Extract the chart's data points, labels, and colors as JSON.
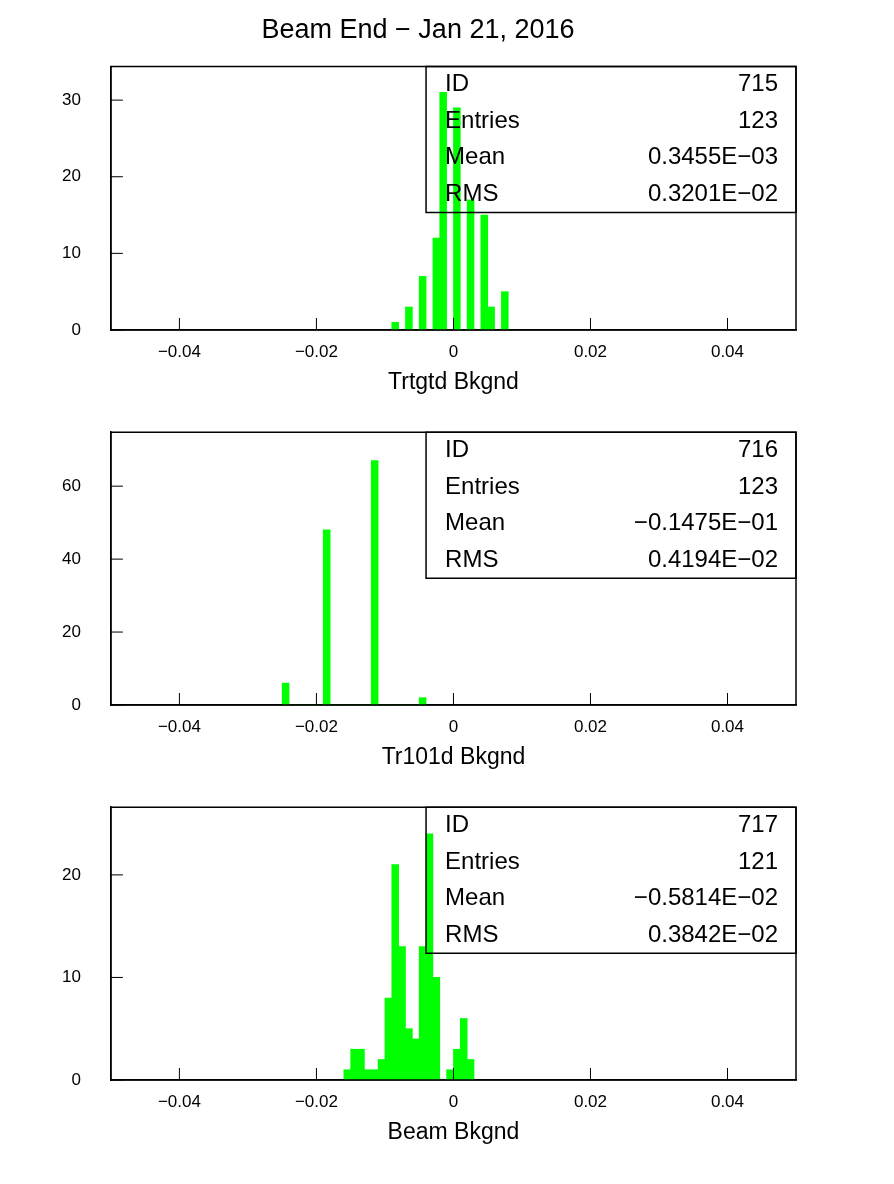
{
  "chart_data": [
    {
      "type": "histogram",
      "title": "Beam End − Jan 21, 2016",
      "xlabel": "Trtgtd Bkgnd",
      "bins": [
        -0.009,
        -0.008,
        -0.007,
        -0.006,
        -0.005,
        -0.004,
        -0.003,
        -0.002,
        -0.001,
        0,
        0.001,
        0.002,
        0.003,
        0.004,
        0.005,
        0.006,
        0.007,
        0.008
      ],
      "values": [
        1,
        0,
        3,
        0,
        7,
        0,
        12,
        31,
        0,
        29,
        0,
        17,
        0,
        15,
        3,
        0,
        5
      ],
      "color": "#00ff00",
      "xlim": [
        -0.05,
        0.05
      ],
      "xticks": [
        -0.04,
        -0.02,
        0,
        0.02,
        0.04
      ],
      "ylim": [
        0,
        34.4
      ],
      "yticks": [
        0,
        10,
        20,
        30
      ],
      "annotations": [
        "ID",
        "715",
        "Entries",
        "123",
        "Mean",
        "0.3455E−03",
        "RMS",
        "0.3201E−02"
      ]
    },
    {
      "type": "histogram",
      "xlabel": "Tr101d Bkgnd",
      "bins": [
        -0.025,
        -0.024,
        -0.023,
        -0.022,
        -0.021,
        -0.02,
        -0.019,
        -0.018,
        -0.017,
        -0.016,
        -0.015,
        -0.014,
        -0.013,
        -0.012,
        -0.011,
        -0.01,
        -0.009,
        -0.008,
        -0.007,
        -0.006,
        -0.005,
        -0.004
      ],
      "values": [
        6,
        0,
        0,
        0,
        0,
        0,
        48,
        0,
        0,
        0,
        0,
        0,
        0,
        67,
        0,
        0,
        0,
        0,
        0,
        0,
        2
      ],
      "color": "#00ff00",
      "xlim": [
        -0.05,
        0.05
      ],
      "xticks": [
        -0.04,
        -0.02,
        0,
        0.02,
        0.04
      ],
      "ylim": [
        0,
        74.8
      ],
      "yticks": [
        0,
        20,
        40,
        60
      ],
      "annotations": [
        "ID",
        "716",
        "Entries",
        "123",
        "Mean",
        "−0.1475E−01",
        "RMS",
        "0.4194E−02"
      ]
    },
    {
      "type": "histogram",
      "xlabel": "Beam Bkgnd",
      "bins": [
        -0.016,
        -0.015,
        -0.014,
        -0.013,
        -0.012,
        -0.011,
        -0.01,
        -0.009,
        -0.008,
        -0.007,
        -0.006,
        -0.005,
        -0.004,
        -0.003,
        -0.002,
        -0.001,
        0,
        0.001,
        0.002,
        0.003
      ],
      "values": [
        1,
        3,
        3,
        1,
        1,
        2,
        8,
        21,
        13,
        5,
        4,
        13,
        24,
        10,
        0,
        1,
        3,
        6,
        2
      ],
      "color": "#00ff00",
      "xlim": [
        -0.05,
        0.05
      ],
      "xticks": [
        -0.04,
        -0.02,
        0,
        0.02,
        0.04
      ],
      "ylim": [
        0,
        26.6
      ],
      "yticks": [
        0,
        10,
        20
      ],
      "annotations": [
        "ID",
        "717",
        "Entries",
        "121",
        "Mean",
        "−0.5814E−02",
        "RMS",
        "0.3842E−02"
      ]
    }
  ]
}
